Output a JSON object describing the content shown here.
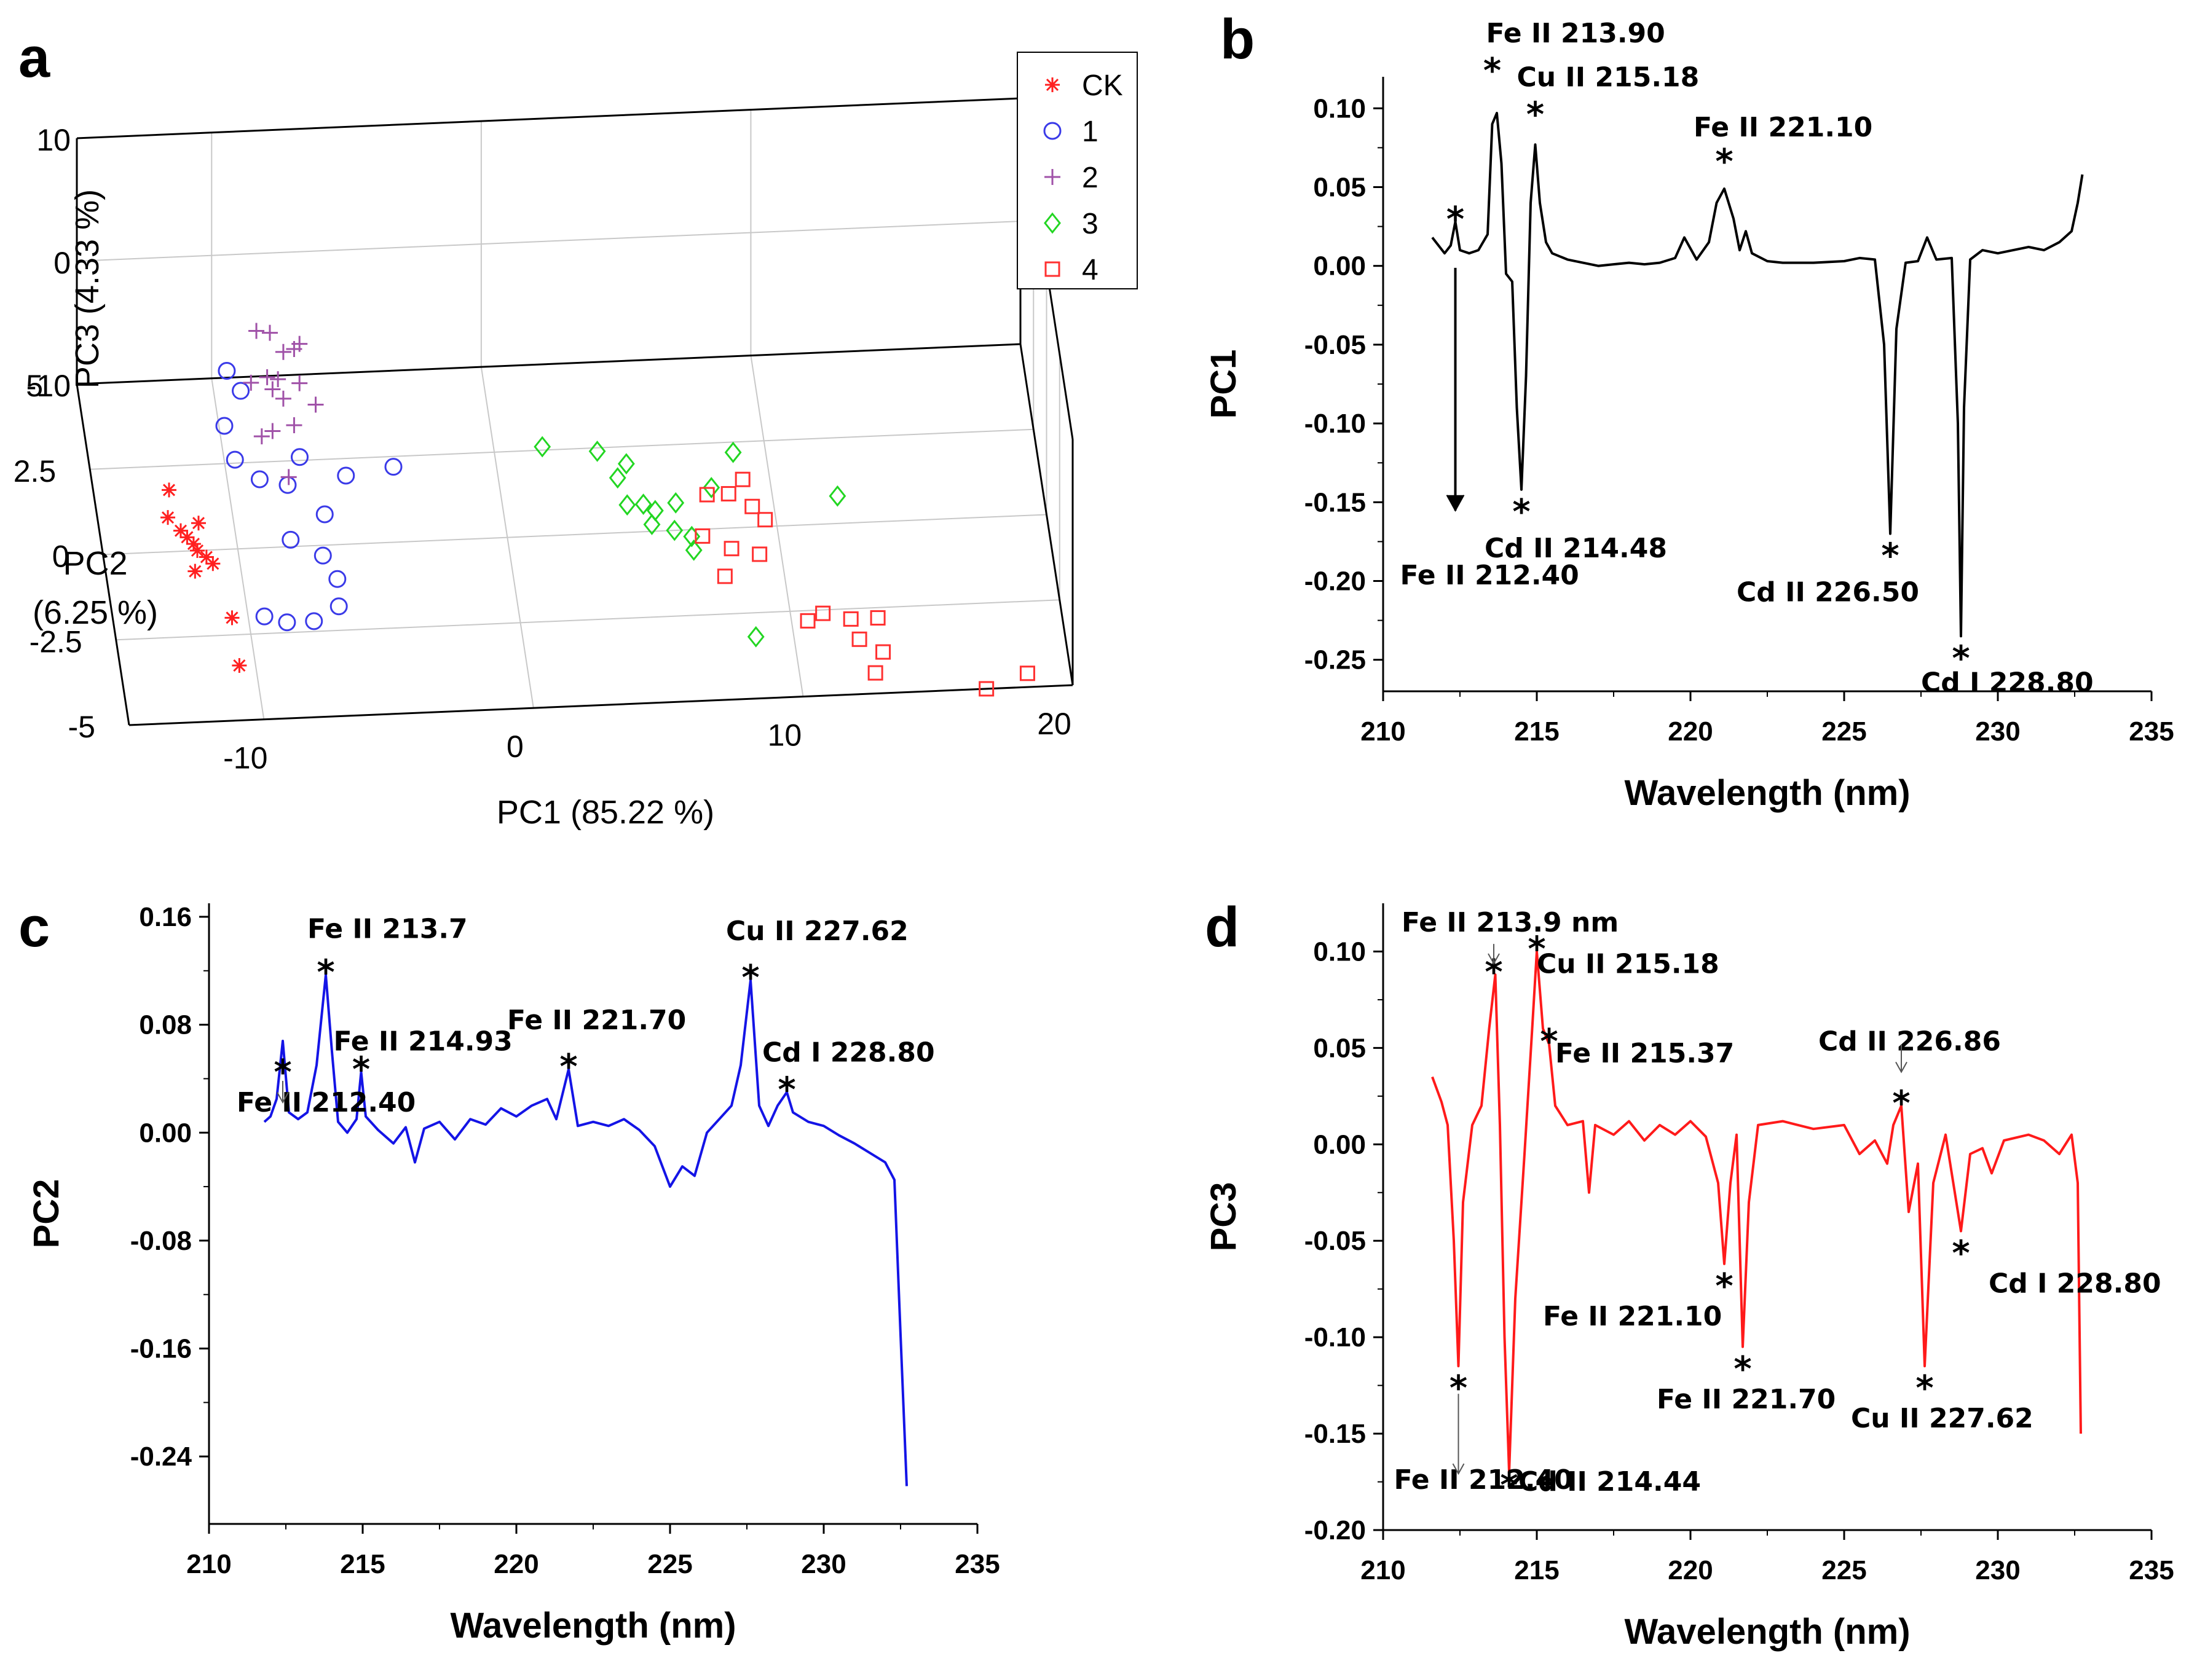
{
  "chart_data": [
    {
      "panel": "a",
      "type": "scatter",
      "projection": "3d",
      "xlabel": "PC1 (85.22 %)",
      "ylabel_line1": "PC2",
      "ylabel_line2": "(6.25 %)",
      "zlabel": "PC3 (4.33 %)",
      "xticks": [
        "-10",
        "0",
        "10",
        "20"
      ],
      "yticks": [
        "-5",
        "-2.5",
        "0",
        "2.5",
        "5"
      ],
      "zticks": [
        "-10",
        "0",
        "10"
      ],
      "xlim": [
        -15,
        20
      ],
      "ylim": [
        -5,
        5
      ],
      "zlim": [
        -10,
        10
      ],
      "grid": true,
      "legend_position": "top-right",
      "series": [
        {
          "name": "CK",
          "color": "#ff2020",
          "marker": "asterisk",
          "points": [
            [
              -12.2,
              1.8,
              -10
            ],
            [
              -12.4,
              1.0,
              -10
            ],
            [
              -12.0,
              0.6,
              -10
            ],
            [
              -11.8,
              0.4,
              -10
            ],
            [
              -11.6,
              0.2,
              -10
            ],
            [
              -11.5,
              0.0,
              -10
            ],
            [
              -11.2,
              -0.2,
              -10
            ],
            [
              -11.0,
              -0.4,
              -10
            ],
            [
              -11.3,
              0.8,
              -10
            ],
            [
              -11.7,
              -0.6,
              -10
            ],
            [
              -10.6,
              -2.0,
              -10
            ],
            [
              -10.6,
              -3.4,
              -10
            ]
          ]
        },
        {
          "name": "1",
          "color": "#3a3ae8",
          "marker": "circle",
          "points": [
            [
              -9.4,
              5.2,
              -10
            ],
            [
              -9.0,
              4.6,
              -10
            ],
            [
              -9.8,
              3.6,
              -10
            ],
            [
              -9.6,
              2.6,
              -10
            ],
            [
              -8.8,
              2.0,
              -10
            ],
            [
              -7.8,
              1.8,
              -10
            ],
            [
              -7.2,
              2.6,
              -10
            ],
            [
              -5.6,
              2.0,
              -10
            ],
            [
              -3.8,
              2.2,
              -10
            ],
            [
              -6.6,
              0.9,
              -10
            ],
            [
              -8.0,
              0.2,
              -10
            ],
            [
              -6.9,
              -0.3,
              -10
            ],
            [
              -6.5,
              -1.0,
              -10
            ],
            [
              -9.4,
              -2.0,
              -10
            ],
            [
              -8.6,
              -2.2,
              -10
            ],
            [
              -7.6,
              -2.2,
              -10
            ],
            [
              -6.6,
              -1.8,
              -10
            ]
          ]
        },
        {
          "name": "2",
          "color": "#a052a8",
          "marker": "plus",
          "points": [
            [
              -9.0,
              1.6,
              3.2
            ],
            [
              -8.5,
              1.6,
              3.0
            ],
            [
              -7.4,
              1.6,
              2.0
            ],
            [
              -7.6,
              1.6,
              1.6
            ],
            [
              -8.0,
              1.6,
              1.4
            ],
            [
              -8.6,
              1.6,
              -0.6
            ],
            [
              -9.2,
              1.6,
              -1.0
            ],
            [
              -8.4,
              1.6,
              -1.6
            ],
            [
              -8.0,
              1.6,
              -2.4
            ],
            [
              -7.4,
              1.6,
              -1.2
            ],
            [
              -6.8,
              1.6,
              -3.0
            ],
            [
              -7.6,
              1.6,
              -4.6
            ],
            [
              -8.4,
              1.6,
              -5.0
            ],
            [
              -8.8,
              1.6,
              -5.4
            ],
            [
              -7.8,
              1.6,
              -8.8
            ],
            [
              -8.2,
              1.6,
              -0.8
            ]
          ]
        },
        {
          "name": "3",
          "color": "#22d622",
          "marker": "diamond",
          "points": [
            [
              1.8,
              2.6,
              -10
            ],
            [
              3.8,
              2.4,
              -10
            ],
            [
              4.8,
              2.0,
              -10
            ],
            [
              4.4,
              1.6,
              -10
            ],
            [
              4.6,
              0.8,
              -10
            ],
            [
              5.2,
              0.8,
              -10
            ],
            [
              5.6,
              0.6,
              -10
            ],
            [
              5.4,
              0.2,
              -10
            ],
            [
              6.4,
              0.8,
              -10
            ],
            [
              6.2,
              0.0,
              -10
            ],
            [
              6.8,
              -0.2,
              -10
            ],
            [
              6.8,
              -0.6,
              -10
            ],
            [
              8.8,
              2.2,
              -10
            ],
            [
              7.8,
              1.2,
              -10
            ],
            [
              12.4,
              0.8,
              -10
            ],
            [
              8.6,
              -3.2,
              -10
            ]
          ]
        },
        {
          "name": "4",
          "color": "#ff3030",
          "marker": "square",
          "points": [
            [
              7.6,
              1.0,
              -10
            ],
            [
              8.4,
              1.0,
              -10
            ],
            [
              9.2,
              0.6,
              -10
            ],
            [
              9.6,
              0.2,
              -10
            ],
            [
              8.2,
              -0.6,
              -10
            ],
            [
              7.8,
              -1.4,
              -10
            ],
            [
              9.2,
              -0.8,
              -10
            ],
            [
              10.6,
              -2.8,
              -10
            ],
            [
              11.2,
              -2.6,
              -10
            ],
            [
              12.2,
              -2.8,
              -10
            ],
            [
              12.4,
              -3.4,
              -10
            ],
            [
              13.2,
              -2.8,
              -10
            ],
            [
              13.2,
              -3.8,
              -10
            ],
            [
              12.8,
              -4.4,
              -10
            ],
            [
              16.8,
              -5.0,
              -10
            ],
            [
              18.4,
              -4.6,
              -10
            ],
            [
              7.2,
              -0.2,
              -10
            ],
            [
              9.0,
              1.4,
              -10
            ]
          ]
        }
      ]
    },
    {
      "panel": "b",
      "type": "line",
      "color": "#000000",
      "xlabel": "Wavelength (nm)",
      "ylabel": "PC1",
      "xlim": [
        210,
        235
      ],
      "ylim": [
        -0.27,
        0.12
      ],
      "xticks": [
        "210",
        "215",
        "220",
        "225",
        "230",
        "235"
      ],
      "yticks": [
        "-0.25",
        "-0.20",
        "-0.15",
        "-0.10",
        "-0.05",
        "0.00",
        "0.05",
        "0.10"
      ],
      "x": [
        211.6,
        212.0,
        212.2,
        212.35,
        212.5,
        212.8,
        213.1,
        213.4,
        213.55,
        213.7,
        213.85,
        214.0,
        214.2,
        214.35,
        214.5,
        214.65,
        214.8,
        214.95,
        215.1,
        215.3,
        215.5,
        216.0,
        216.5,
        217.0,
        217.5,
        218.0,
        218.5,
        219.0,
        219.5,
        219.8,
        220.2,
        220.6,
        220.85,
        221.1,
        221.4,
        221.6,
        221.8,
        222.0,
        222.5,
        223.0,
        224.0,
        225.0,
        225.5,
        226.0,
        226.3,
        226.5,
        226.7,
        227.0,
        227.4,
        227.7,
        228.0,
        228.5,
        228.7,
        228.8,
        228.9,
        229.1,
        229.5,
        230.0,
        230.5,
        231.0,
        231.5,
        232.0,
        232.4,
        232.6,
        232.75
      ],
      "values": [
        0.018,
        0.008,
        0.013,
        0.028,
        0.01,
        0.008,
        0.01,
        0.02,
        0.09,
        0.097,
        0.065,
        -0.005,
        -0.01,
        -0.09,
        -0.142,
        -0.07,
        0.04,
        0.077,
        0.04,
        0.015,
        0.008,
        0.004,
        0.002,
        0.0,
        0.001,
        0.002,
        0.001,
        0.002,
        0.005,
        0.018,
        0.004,
        0.015,
        0.04,
        0.049,
        0.03,
        0.01,
        0.022,
        0.008,
        0.003,
        0.002,
        0.002,
        0.003,
        0.005,
        0.004,
        -0.05,
        -0.17,
        -0.04,
        0.002,
        0.003,
        0.018,
        0.004,
        0.005,
        -0.1,
        -0.235,
        -0.09,
        0.004,
        0.01,
        0.008,
        0.01,
        0.012,
        0.01,
        0.015,
        0.022,
        0.04,
        0.058
      ],
      "annotations": [
        {
          "text": "Fe II 213.90",
          "x": 213.55,
          "y": 0.097
        },
        {
          "text": "Cu II 215.18",
          "x": 214.95,
          "y": 0.077
        },
        {
          "text": "Fe II 221.10",
          "x": 221.1,
          "y": 0.049
        },
        {
          "text": "Cd II 214.48",
          "x": 214.5,
          "y": -0.142
        },
        {
          "text": "Cd II 226.50",
          "x": 226.5,
          "y": -0.17
        },
        {
          "text": "Cd I 228.80",
          "x": 228.8,
          "y": -0.235
        },
        {
          "text": "Fe II 212.40",
          "x": 212.35,
          "y": 0.028
        }
      ]
    },
    {
      "panel": "c",
      "type": "line",
      "color": "#1414e6",
      "xlabel": "Wavelength (nm)",
      "ylabel": "PC2",
      "xlim": [
        210,
        235
      ],
      "ylim": [
        -0.29,
        0.17
      ],
      "xticks": [
        "210",
        "215",
        "220",
        "225",
        "230",
        "235"
      ],
      "yticks": [
        "-0.24",
        "-0.16",
        "-0.08",
        "0.00",
        "0.08",
        "0.16"
      ],
      "x": [
        211.8,
        212.0,
        212.2,
        212.4,
        212.6,
        212.9,
        213.2,
        213.5,
        213.8,
        214.0,
        214.2,
        214.5,
        214.8,
        214.95,
        215.1,
        215.5,
        216.0,
        216.4,
        216.7,
        217.0,
        217.5,
        218.0,
        218.5,
        219.0,
        219.5,
        220.0,
        220.5,
        221.0,
        221.3,
        221.7,
        222.0,
        222.5,
        223.0,
        223.5,
        224.0,
        224.5,
        225.0,
        225.4,
        225.8,
        226.2,
        226.6,
        227.0,
        227.3,
        227.62,
        227.9,
        228.2,
        228.5,
        228.8,
        229.0,
        229.5,
        230.0,
        230.5,
        231.0,
        231.5,
        232.0,
        232.3,
        232.5,
        232.7
      ],
      "values": [
        0.008,
        0.012,
        0.025,
        0.068,
        0.015,
        0.01,
        0.015,
        0.05,
        0.117,
        0.06,
        0.008,
        0.0,
        0.01,
        0.045,
        0.012,
        0.002,
        -0.008,
        0.004,
        -0.022,
        0.003,
        0.008,
        -0.005,
        0.01,
        0.006,
        0.018,
        0.012,
        0.02,
        0.025,
        0.01,
        0.047,
        0.005,
        0.008,
        0.005,
        0.01,
        0.002,
        -0.01,
        -0.04,
        -0.025,
        -0.032,
        0.0,
        0.01,
        0.02,
        0.05,
        0.113,
        0.02,
        0.005,
        0.02,
        0.03,
        0.015,
        0.008,
        0.005,
        -0.002,
        -0.008,
        -0.015,
        -0.022,
        -0.035,
        -0.15,
        -0.262
      ],
      "annotations": [
        {
          "text": "Fe II 213.7",
          "x": 213.8,
          "y": 0.117
        },
        {
          "text": "Fe II 214.93",
          "x": 214.95,
          "y": 0.045
        },
        {
          "text": "Fe II 221.70",
          "x": 221.7,
          "y": 0.047
        },
        {
          "text": "Cu II 227.62",
          "x": 227.62,
          "y": 0.113
        },
        {
          "text": "Cd I 228.80",
          "x": 228.8,
          "y": 0.03
        },
        {
          "text": "Fe II 212.40",
          "x": 212.4,
          "y": 0.068
        }
      ]
    },
    {
      "panel": "d",
      "type": "line",
      "color": "#ff1a1a",
      "xlabel": "Wavelength (nm)",
      "ylabel": "PC3",
      "xlim": [
        210,
        235
      ],
      "ylim": [
        -0.2,
        0.125
      ],
      "xticks": [
        "210",
        "215",
        "220",
        "225",
        "230",
        "235"
      ],
      "yticks": [
        "-0.20",
        "-0.15",
        "-0.10",
        "-0.05",
        "0.00",
        "0.05",
        "0.10"
      ],
      "x": [
        211.6,
        211.9,
        212.1,
        212.3,
        212.45,
        212.6,
        212.9,
        213.2,
        213.45,
        213.65,
        213.8,
        213.95,
        214.1,
        214.3,
        214.6,
        214.85,
        215.0,
        215.2,
        215.4,
        215.6,
        216.0,
        216.5,
        216.7,
        216.9,
        217.5,
        218.0,
        218.5,
        219.0,
        219.5,
        220.0,
        220.5,
        220.9,
        221.1,
        221.3,
        221.5,
        221.7,
        221.9,
        222.2,
        223.0,
        224.0,
        225.0,
        225.5,
        226.0,
        226.4,
        226.6,
        226.86,
        227.1,
        227.4,
        227.62,
        227.9,
        228.3,
        228.8,
        229.1,
        229.5,
        229.8,
        230.2,
        231.0,
        231.5,
        232.0,
        232.4,
        232.6,
        232.7
      ],
      "values": [
        0.035,
        0.022,
        0.01,
        -0.05,
        -0.115,
        -0.03,
        0.01,
        0.02,
        0.06,
        0.088,
        0.01,
        -0.1,
        -0.17,
        -0.08,
        -0.005,
        0.06,
        0.1,
        0.06,
        0.052,
        0.02,
        0.01,
        0.012,
        -0.025,
        0.01,
        0.005,
        0.012,
        0.002,
        0.01,
        0.005,
        0.012,
        0.004,
        -0.02,
        -0.062,
        -0.02,
        0.005,
        -0.105,
        -0.03,
        0.01,
        0.012,
        0.008,
        0.01,
        -0.005,
        0.002,
        -0.01,
        0.01,
        0.02,
        -0.035,
        -0.01,
        -0.115,
        -0.02,
        0.005,
        -0.045,
        -0.005,
        -0.002,
        -0.015,
        0.002,
        0.005,
        0.002,
        -0.005,
        0.005,
        -0.02,
        -0.15
      ],
      "annotations": [
        {
          "text": "Fe II 213.9 nm",
          "x": 213.6,
          "y": 0.088
        },
        {
          "text": "Cu II 215.18",
          "x": 215.0,
          "y": 0.1
        },
        {
          "text": "Fe II 215.37",
          "x": 215.4,
          "y": 0.052
        },
        {
          "text": "Cd II 226.86",
          "x": 226.86,
          "y": 0.02
        },
        {
          "text": "Cd I 228.80",
          "x": 228.8,
          "y": -0.045
        },
        {
          "text": "Fe II 221.10",
          "x": 221.1,
          "y": -0.062
        },
        {
          "text": "Fe II 221.70",
          "x": 221.7,
          "y": -0.105
        },
        {
          "text": "Cu II 227.62",
          "x": 227.62,
          "y": -0.115
        },
        {
          "text": "Cd II 214.44",
          "x": 214.1,
          "y": -0.17
        },
        {
          "text": "Fe II 212.40",
          "x": 212.45,
          "y": -0.115
        }
      ]
    }
  ],
  "panel_labels": [
    "a",
    "b",
    "c",
    "d"
  ]
}
